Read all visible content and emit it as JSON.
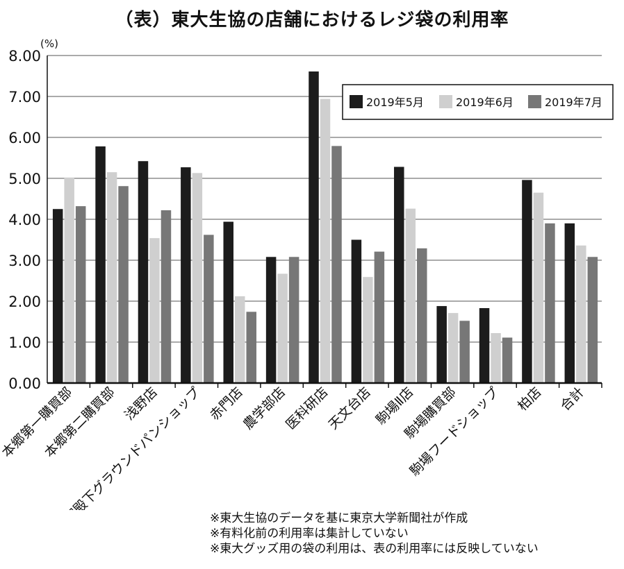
{
  "chart_data": {
    "type": "bar",
    "title": "（表）東大生協の店舗におけるレジ袋の利用率",
    "ylabel": "(%)",
    "xlabel": "",
    "ylim": [
      0,
      8
    ],
    "yticks": [
      "0.00",
      "1.00",
      "2.00",
      "3.00",
      "4.00",
      "5.00",
      "6.00",
      "7.00",
      "8.00"
    ],
    "grid": true,
    "legend_position": "top-right",
    "categories": [
      "本郷第一購買部",
      "本郷第二購買部",
      "浅野店",
      "御殿下グラウンドパンショップ",
      "赤門店",
      "農学部店",
      "医科研店",
      "天文台店",
      "駒場Ⅱ店",
      "駒場購買部",
      "駒場フードショップ",
      "柏店",
      "合計"
    ],
    "series": [
      {
        "name": "2019年5月",
        "color": "#1c1c1c",
        "values": [
          4.25,
          5.78,
          5.42,
          5.27,
          3.94,
          3.08,
          7.61,
          3.5,
          5.28,
          1.88,
          1.83,
          4.96,
          3.9
        ]
      },
      {
        "name": "2019年6月",
        "color": "#cfcfcf",
        "values": [
          5.02,
          5.15,
          3.54,
          5.13,
          2.12,
          2.67,
          6.94,
          2.59,
          4.26,
          1.71,
          1.22,
          4.65,
          3.36
        ]
      },
      {
        "name": "2019年7月",
        "color": "#777777",
        "values": [
          4.32,
          4.81,
          4.22,
          3.62,
          1.74,
          3.08,
          5.79,
          3.21,
          3.29,
          1.52,
          1.11,
          3.9,
          3.08
        ]
      }
    ]
  },
  "notes": [
    "※東大生協のデータを基に東京大学新聞社が作成",
    "※有料化前の利用率は集計していない",
    "※東大グッズ用の袋の利用は、表の利用率には反映していない"
  ]
}
